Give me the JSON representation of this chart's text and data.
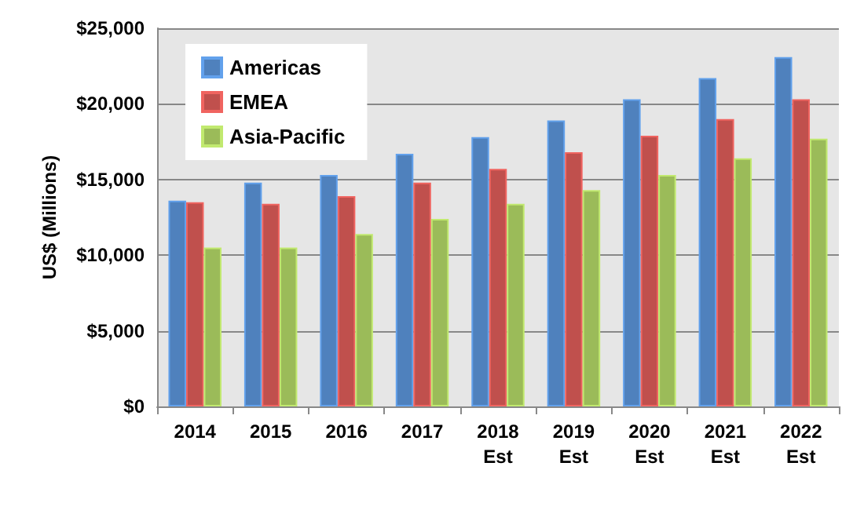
{
  "chart_data": {
    "type": "bar",
    "ylabel": "US$ (Millions)",
    "categories": [
      "2014",
      "2015",
      "2016",
      "2017",
      "2018\nEst",
      "2019\nEst",
      "2020\nEst",
      "2021\nEst",
      "2022\nEst"
    ],
    "series": [
      {
        "name": "Americas",
        "color": "#4f81bd",
        "values": [
          13600,
          14800,
          15300,
          16700,
          17800,
          18900,
          20300,
          21700,
          23100
        ]
      },
      {
        "name": "EMEA",
        "color": "#c0504d",
        "values": [
          13500,
          13400,
          13900,
          14800,
          15700,
          16800,
          17900,
          19000,
          20300
        ]
      },
      {
        "name": "Asia-Pacific",
        "color": "#9bbb59",
        "values": [
          10500,
          10500,
          11400,
          12400,
          13400,
          14300,
          15300,
          16400,
          17700
        ]
      }
    ],
    "ylim": [
      0,
      25000
    ],
    "yticks": [
      {
        "value": 0,
        "label": "$0"
      },
      {
        "value": 5000,
        "label": "$5,000"
      },
      {
        "value": 10000,
        "label": "$10,000"
      },
      {
        "value": 15000,
        "label": "$15,000"
      },
      {
        "value": 20000,
        "label": "$20,000"
      },
      {
        "value": 25000,
        "label": "$25,000"
      }
    ],
    "grid": "y",
    "legend": "top left"
  }
}
